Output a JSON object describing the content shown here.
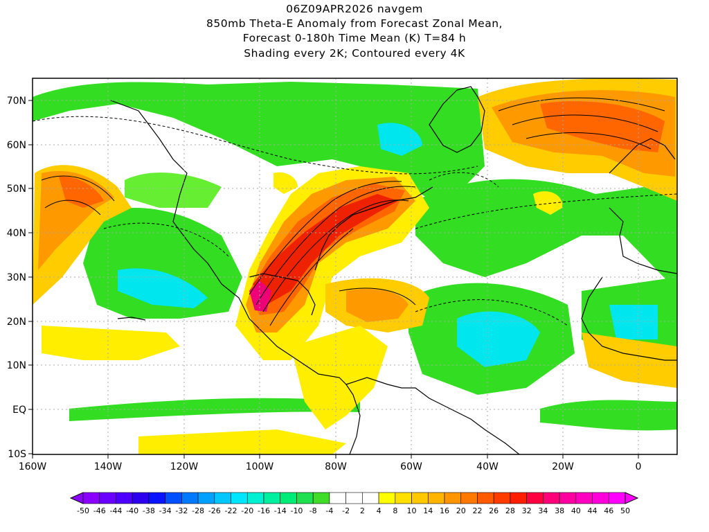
{
  "title": {
    "line1": "06Z09APR2026 navgem",
    "line2": "850mb Theta-E Anomaly from Forecast Zonal Mean,",
    "line3": "Forecast 0-180h Time Mean (K) T=84 h",
    "line4": "Shading every 2K; Contoured every 4K"
  },
  "map": {
    "lon_range": [
      -160,
      10
    ],
    "lat_range": [
      -10,
      75
    ],
    "lat_labels": [
      "70N",
      "60N",
      "50N",
      "40N",
      "30N",
      "20N",
      "10N",
      "EQ",
      "10S"
    ],
    "lon_labels": [
      "160W",
      "140W",
      "120W",
      "100W",
      "80W",
      "60W",
      "40W",
      "20W",
      "0"
    ]
  },
  "colorbar": {
    "labels": [
      "-50",
      "-46",
      "-44",
      "-40",
      "-38",
      "-34",
      "-32",
      "-28",
      "-26",
      "-22",
      "-20",
      "-16",
      "-14",
      "-10",
      "-8",
      "-4",
      "-2",
      "2",
      "4",
      "8",
      "10",
      "14",
      "16",
      "20",
      "22",
      "26",
      "28",
      "32",
      "34",
      "38",
      "40",
      "44",
      "46",
      "50"
    ],
    "colors": [
      "#8a00ff",
      "#6a00ff",
      "#4d00ff",
      "#2e00f0",
      "#0a14ff",
      "#0050ff",
      "#0078ff",
      "#00a0ff",
      "#00c8ff",
      "#00e6ff",
      "#00f0d2",
      "#00f0a0",
      "#00ec78",
      "#20e050",
      "#40dc28",
      "#ffffff",
      "#ffffff",
      "#ffffff",
      "#ffff00",
      "#ffe000",
      "#ffc800",
      "#ffb400",
      "#ff9600",
      "#ff7800",
      "#ff5a00",
      "#ff3c00",
      "#ff1e00",
      "#ff0040",
      "#ff0078",
      "#ff00a0",
      "#ff00c0",
      "#ff00dc",
      "#ff00ff"
    ]
  },
  "colors": {
    "green": "#33dd22",
    "light_green": "#66ee33",
    "cyan": "#00e6ee",
    "yellow": "#ffee00",
    "gold": "#ffcc00",
    "orange": "#ff9900",
    "dark_orange": "#ff6600",
    "red": "#ee2200",
    "magenta": "#ee0077"
  }
}
